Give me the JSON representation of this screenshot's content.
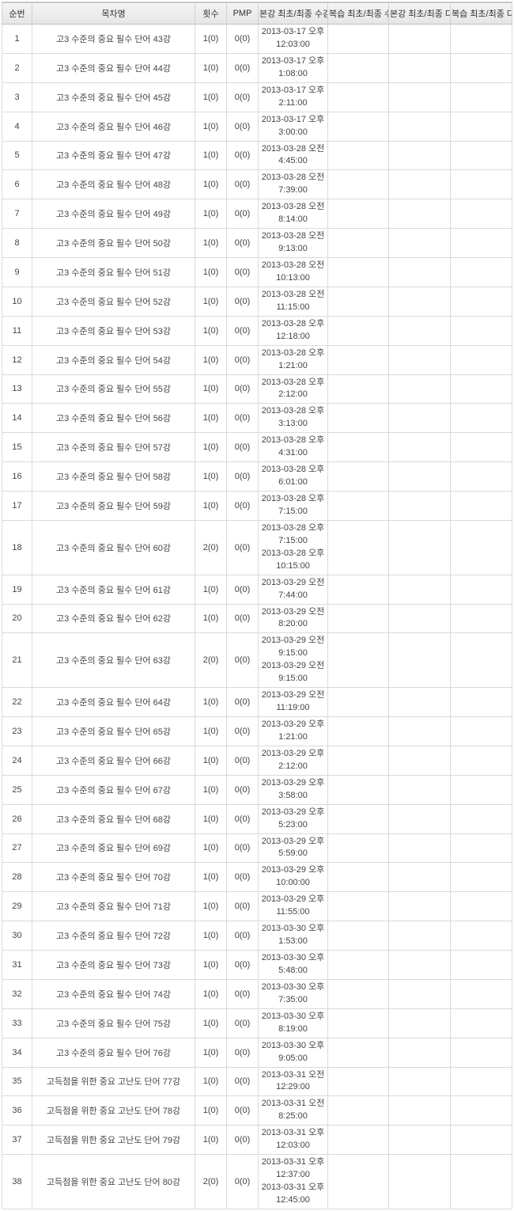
{
  "colors": {
    "header_bg_top": "#f3f3f3",
    "header_bg_bottom": "#e6e6e6",
    "border": "#dadada",
    "header_border": "#d2d2d2",
    "top_strip": "#c9c9c9",
    "text": "#444444",
    "row_bg": "#ffffff"
  },
  "table": {
    "columns": [
      "순번",
      "목차명",
      "횟수",
      "PMP",
      "본강 최초/최종 수강일시",
      "복습 최초/최종 수강일시",
      "본강 최초/최종 다운일시",
      "복습 최초/최종 다운일시"
    ],
    "rows": [
      {
        "no": "1",
        "title": "고3 수준의 중요 필수 단어 43강",
        "count": "1(0)",
        "pmp": "0(0)",
        "attend": [
          "2013-03-17 오후 12:03:00"
        ],
        "review_attend": "",
        "down": "",
        "review_down": ""
      },
      {
        "no": "2",
        "title": "고3 수준의 중요 필수 단어 44강",
        "count": "1(0)",
        "pmp": "0(0)",
        "attend": [
          "2013-03-17 오후 1:08:00"
        ],
        "review_attend": "",
        "down": "",
        "review_down": ""
      },
      {
        "no": "3",
        "title": "고3 수준의 중요 필수 단어 45강",
        "count": "1(0)",
        "pmp": "0(0)",
        "attend": [
          "2013-03-17 오후 2:11:00"
        ],
        "review_attend": "",
        "down": "",
        "review_down": ""
      },
      {
        "no": "4",
        "title": "고3 수준의 중요 필수 단어 46강",
        "count": "1(0)",
        "pmp": "0(0)",
        "attend": [
          "2013-03-17 오후 3:00:00"
        ],
        "review_attend": "",
        "down": "",
        "review_down": ""
      },
      {
        "no": "5",
        "title": "고3 수준의 중요 필수 단어 47강",
        "count": "1(0)",
        "pmp": "0(0)",
        "attend": [
          "2013-03-28 오전 4:45:00"
        ],
        "review_attend": "",
        "down": "",
        "review_down": ""
      },
      {
        "no": "6",
        "title": "고3 수준의 중요 필수 단어 48강",
        "count": "1(0)",
        "pmp": "0(0)",
        "attend": [
          "2013-03-28 오전 7:39:00"
        ],
        "review_attend": "",
        "down": "",
        "review_down": ""
      },
      {
        "no": "7",
        "title": "고3 수준의 중요 필수 단어 49강",
        "count": "1(0)",
        "pmp": "0(0)",
        "attend": [
          "2013-03-28 오전 8:14:00"
        ],
        "review_attend": "",
        "down": "",
        "review_down": ""
      },
      {
        "no": "8",
        "title": "고3 수준의 중요 필수 단어 50강",
        "count": "1(0)",
        "pmp": "0(0)",
        "attend": [
          "2013-03-28 오전 9:13:00"
        ],
        "review_attend": "",
        "down": "",
        "review_down": ""
      },
      {
        "no": "9",
        "title": "고3 수준의 중요 필수 단어 51강",
        "count": "1(0)",
        "pmp": "0(0)",
        "attend": [
          "2013-03-28 오전 10:13:00"
        ],
        "review_attend": "",
        "down": "",
        "review_down": ""
      },
      {
        "no": "10",
        "title": "고3 수준의 중요 필수 단어 52강",
        "count": "1(0)",
        "pmp": "0(0)",
        "attend": [
          "2013-03-28 오전 11:15:00"
        ],
        "review_attend": "",
        "down": "",
        "review_down": ""
      },
      {
        "no": "11",
        "title": "고3 수준의 중요 필수 단어 53강",
        "count": "1(0)",
        "pmp": "0(0)",
        "attend": [
          "2013-03-28 오후 12:18:00"
        ],
        "review_attend": "",
        "down": "",
        "review_down": ""
      },
      {
        "no": "12",
        "title": "고3 수준의 중요 필수 단어 54강",
        "count": "1(0)",
        "pmp": "0(0)",
        "attend": [
          "2013-03-28 오후 1:21:00"
        ],
        "review_attend": "",
        "down": "",
        "review_down": ""
      },
      {
        "no": "13",
        "title": "고3 수준의 중요 필수 단어 55강",
        "count": "1(0)",
        "pmp": "0(0)",
        "attend": [
          "2013-03-28 오후 2:12:00"
        ],
        "review_attend": "",
        "down": "",
        "review_down": ""
      },
      {
        "no": "14",
        "title": "고3 수준의 중요 필수 단어 56강",
        "count": "1(0)",
        "pmp": "0(0)",
        "attend": [
          "2013-03-28 오후 3:13:00"
        ],
        "review_attend": "",
        "down": "",
        "review_down": ""
      },
      {
        "no": "15",
        "title": "고3 수준의 중요 필수 단어 57강",
        "count": "1(0)",
        "pmp": "0(0)",
        "attend": [
          "2013-03-28 오후 4:31:00"
        ],
        "review_attend": "",
        "down": "",
        "review_down": ""
      },
      {
        "no": "16",
        "title": "고3 수준의 중요 필수 단어 58강",
        "count": "1(0)",
        "pmp": "0(0)",
        "attend": [
          "2013-03-28 오후 6:01:00"
        ],
        "review_attend": "",
        "down": "",
        "review_down": ""
      },
      {
        "no": "17",
        "title": "고3 수준의 중요 필수 단어 59강",
        "count": "1(0)",
        "pmp": "0(0)",
        "attend": [
          "2013-03-28 오후 7:15:00"
        ],
        "review_attend": "",
        "down": "",
        "review_down": ""
      },
      {
        "no": "18",
        "title": "고3 수준의 중요 필수 단어 60강",
        "count": "2(0)",
        "pmp": "0(0)",
        "attend": [
          "2013-03-28 오후 7:15:00",
          "2013-03-28 오후 10:15:00"
        ],
        "review_attend": "",
        "down": "",
        "review_down": ""
      },
      {
        "no": "19",
        "title": "고3 수준의 중요 필수 단어 61강",
        "count": "1(0)",
        "pmp": "0(0)",
        "attend": [
          "2013-03-29 오전 7:44:00"
        ],
        "review_attend": "",
        "down": "",
        "review_down": ""
      },
      {
        "no": "20",
        "title": "고3 수준의 중요 필수 단어 62강",
        "count": "1(0)",
        "pmp": "0(0)",
        "attend": [
          "2013-03-29 오전 8:20:00"
        ],
        "review_attend": "",
        "down": "",
        "review_down": ""
      },
      {
        "no": "21",
        "title": "고3 수준의 중요 필수 단어 63강",
        "count": "2(0)",
        "pmp": "0(0)",
        "attend": [
          "2013-03-29 오전 9:15:00",
          "2013-03-29 오전 9:15:00"
        ],
        "review_attend": "",
        "down": "",
        "review_down": ""
      },
      {
        "no": "22",
        "title": "고3 수준의 중요 필수 단어 64강",
        "count": "1(0)",
        "pmp": "0(0)",
        "attend": [
          "2013-03-29 오전 11:19:00"
        ],
        "review_attend": "",
        "down": "",
        "review_down": ""
      },
      {
        "no": "23",
        "title": "고3 수준의 중요 필수 단어 65강",
        "count": "1(0)",
        "pmp": "0(0)",
        "attend": [
          "2013-03-29 오후 1:21:00"
        ],
        "review_attend": "",
        "down": "",
        "review_down": ""
      },
      {
        "no": "24",
        "title": "고3 수준의 중요 필수 단어 66강",
        "count": "1(0)",
        "pmp": "0(0)",
        "attend": [
          "2013-03-29 오후 2:12:00"
        ],
        "review_attend": "",
        "down": "",
        "review_down": ""
      },
      {
        "no": "25",
        "title": "고3 수준의 중요 필수 단어 67강",
        "count": "1(0)",
        "pmp": "0(0)",
        "attend": [
          "2013-03-29 오후 3:58:00"
        ],
        "review_attend": "",
        "down": "",
        "review_down": ""
      },
      {
        "no": "26",
        "title": "고3 수준의 중요 필수 단어 68강",
        "count": "1(0)",
        "pmp": "0(0)",
        "attend": [
          "2013-03-29 오후 5:23:00"
        ],
        "review_attend": "",
        "down": "",
        "review_down": ""
      },
      {
        "no": "27",
        "title": "고3 수준의 중요 필수 단어 69강",
        "count": "1(0)",
        "pmp": "0(0)",
        "attend": [
          "2013-03-29 오후 5:59:00"
        ],
        "review_attend": "",
        "down": "",
        "review_down": ""
      },
      {
        "no": "28",
        "title": "고3 수준의 중요 필수 단어 70강",
        "count": "1(0)",
        "pmp": "0(0)",
        "attend": [
          "2013-03-29 오후 10:00:00"
        ],
        "review_attend": "",
        "down": "",
        "review_down": ""
      },
      {
        "no": "29",
        "title": "고3 수준의 중요 필수 단어 71강",
        "count": "1(0)",
        "pmp": "0(0)",
        "attend": [
          "2013-03-29 오후 11:55:00"
        ],
        "review_attend": "",
        "down": "",
        "review_down": ""
      },
      {
        "no": "30",
        "title": "고3 수준의 중요 필수 단어 72강",
        "count": "1(0)",
        "pmp": "0(0)",
        "attend": [
          "2013-03-30 오후 1:53:00"
        ],
        "review_attend": "",
        "down": "",
        "review_down": ""
      },
      {
        "no": "31",
        "title": "고3 수준의 중요 필수 단어 73강",
        "count": "1(0)",
        "pmp": "0(0)",
        "attend": [
          "2013-03-30 오후 5:48:00"
        ],
        "review_attend": "",
        "down": "",
        "review_down": ""
      },
      {
        "no": "32",
        "title": "고3 수준의 중요 필수 단어 74강",
        "count": "1(0)",
        "pmp": "0(0)",
        "attend": [
          "2013-03-30 오후 7:35:00"
        ],
        "review_attend": "",
        "down": "",
        "review_down": ""
      },
      {
        "no": "33",
        "title": "고3 수준의 중요 필수 단어 75강",
        "count": "1(0)",
        "pmp": "0(0)",
        "attend": [
          "2013-03-30 오후 8:19:00"
        ],
        "review_attend": "",
        "down": "",
        "review_down": ""
      },
      {
        "no": "34",
        "title": "고3 수준의 중요 필수 단어 76강",
        "count": "1(0)",
        "pmp": "0(0)",
        "attend": [
          "2013-03-30 오후 9:05:00"
        ],
        "review_attend": "",
        "down": "",
        "review_down": ""
      },
      {
        "no": "35",
        "title": "고득점을 위한 중요 고난도 단어 77강",
        "count": "1(0)",
        "pmp": "0(0)",
        "attend": [
          "2013-03-31 오전 12:29:00"
        ],
        "review_attend": "",
        "down": "",
        "review_down": ""
      },
      {
        "no": "36",
        "title": "고득점을 위한 중요 고난도 단어 78강",
        "count": "1(0)",
        "pmp": "0(0)",
        "attend": [
          "2013-03-31 오전 8:25:00"
        ],
        "review_attend": "",
        "down": "",
        "review_down": ""
      },
      {
        "no": "37",
        "title": "고득점을 위한 중요 고난도 단어 79강",
        "count": "1(0)",
        "pmp": "0(0)",
        "attend": [
          "2013-03-31 오후 12:03:00"
        ],
        "review_attend": "",
        "down": "",
        "review_down": ""
      },
      {
        "no": "38",
        "title": "고득점을 위한 중요 고난도 단어 80강",
        "count": "2(0)",
        "pmp": "0(0)",
        "attend": [
          "2013-03-31 오후 12:37:00",
          "2013-03-31 오후 12:45:00"
        ],
        "review_attend": "",
        "down": "",
        "review_down": ""
      }
    ]
  }
}
